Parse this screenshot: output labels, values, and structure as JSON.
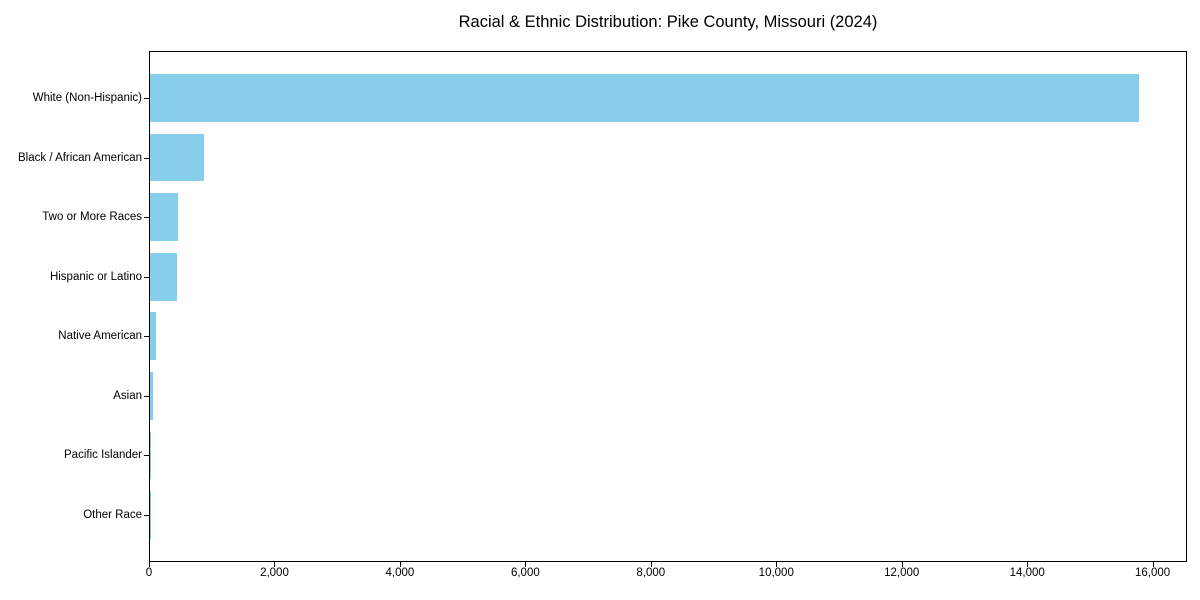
{
  "figure": {
    "background_color": "#FFFFFF"
  },
  "chart_data": {
    "type": "bar",
    "orientation": "horizontal",
    "title": "Racial & Ethnic Distribution: Pike County, Missouri (2024)",
    "categories": [
      "White (Non-Hispanic)",
      "Black / African American",
      "Two or More Races",
      "Hispanic or Latino",
      "Native American",
      "Asian",
      "Pacific Islander",
      "Other Race"
    ],
    "values": [
      15760,
      865,
      445,
      430,
      90,
      55,
      10,
      5
    ],
    "xlabel": "",
    "ylabel": "",
    "xlim": [
      0,
      16548
    ],
    "xticks": [
      0,
      2000,
      4000,
      6000,
      8000,
      10000,
      12000,
      14000,
      16000
    ],
    "xtick_labels": [
      "0",
      "2,000",
      "4,000",
      "6,000",
      "8,000",
      "10,000",
      "12,000",
      "14,000",
      "16,000"
    ],
    "grid": false,
    "legend": null,
    "bar_color": "#87CEEB",
    "spine_color": "#000000",
    "text_color": "#000000",
    "bar_height_fraction": 0.8,
    "categories_top_to_bottom": true
  }
}
